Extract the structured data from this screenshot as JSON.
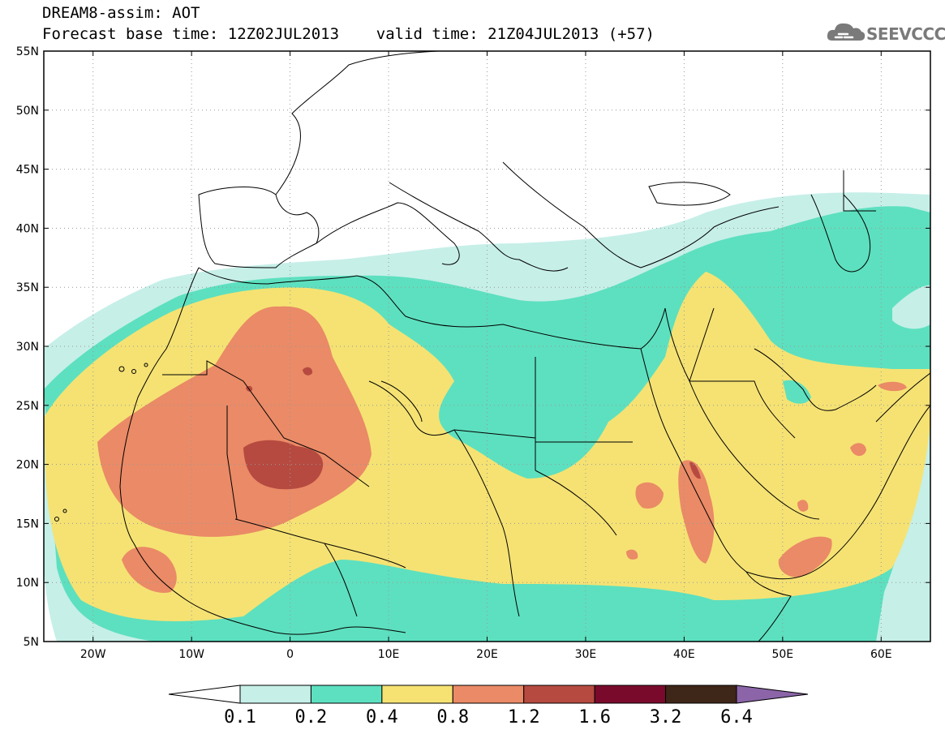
{
  "title": {
    "line1": "DREAM8-assim: AOT",
    "line2": "Forecast base time: 12Z02JUL2013    valid time: 21Z04JUL2013 (+57)"
  },
  "logo": {
    "text": "SEEVCCC",
    "icon": "cloud-icon",
    "color": "#7a7a7a"
  },
  "map": {
    "lon_range": [
      -25,
      65
    ],
    "lat_range": [
      5,
      55
    ],
    "lat_ticks": [
      "5N",
      "10N",
      "15N",
      "20N",
      "25N",
      "30N",
      "35N",
      "40N",
      "45N",
      "50N",
      "55N"
    ],
    "lon_ticks": [
      "20W",
      "10W",
      "0",
      "10E",
      "20E",
      "30E",
      "40E",
      "50E",
      "60E"
    ],
    "grid": "dotted",
    "variable": "AOT"
  },
  "colorbar": {
    "labels": [
      "0.1",
      "0.2",
      "0.4",
      "0.8",
      "1.2",
      "1.6",
      "3.2",
      "6.4"
    ],
    "colors": [
      "#ffffff",
      "#c6efe8",
      "#5de0bf",
      "#f5e273",
      "#ea8a66",
      "#b64a40",
      "#7a0a2c",
      "#3e2618",
      "#8b65a8"
    ]
  }
}
